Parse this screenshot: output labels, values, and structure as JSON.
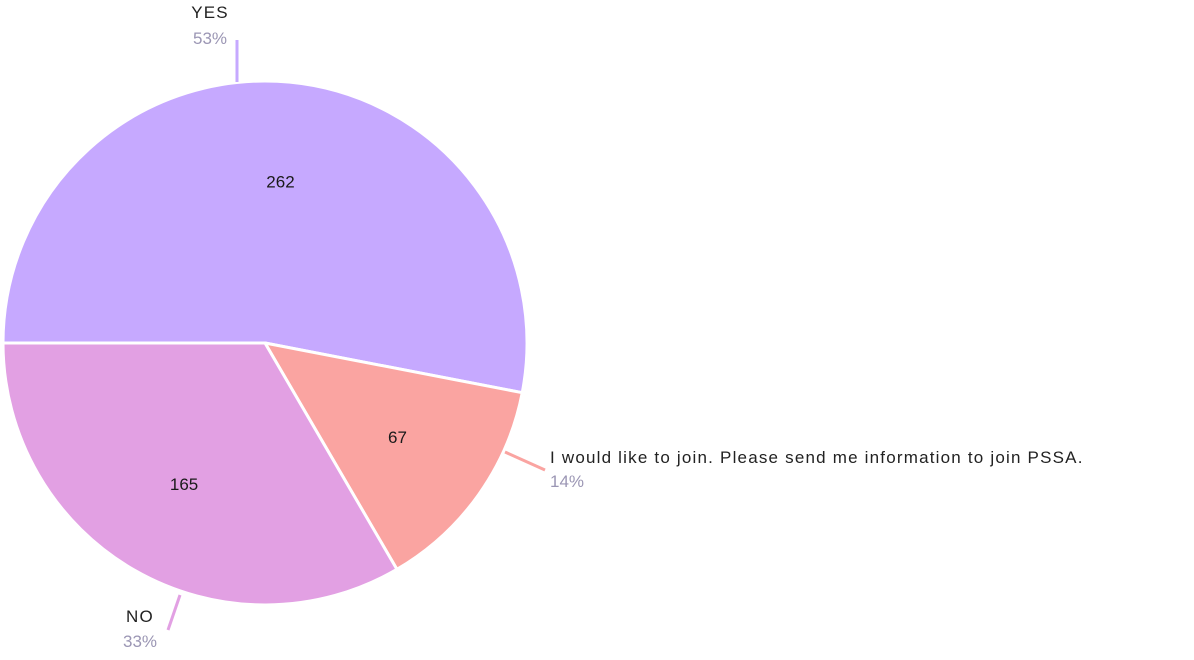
{
  "chart_data": {
    "type": "pie",
    "slices": [
      {
        "label": "YES",
        "value": 262,
        "percent_label": "53%",
        "color": "#c6a9ff"
      },
      {
        "label": "I would like to join. Please send me information to join PSSA.",
        "value": 67,
        "percent_label": "14%",
        "color": "#faa4a1"
      },
      {
        "label": "NO",
        "value": 165,
        "percent_label": "33%",
        "color": "#e2a0e3"
      }
    ],
    "start_angle_deg": 180,
    "direction": "clockwise",
    "separator_color": "#ffffff",
    "percent_text_color": "#9b96b4"
  }
}
